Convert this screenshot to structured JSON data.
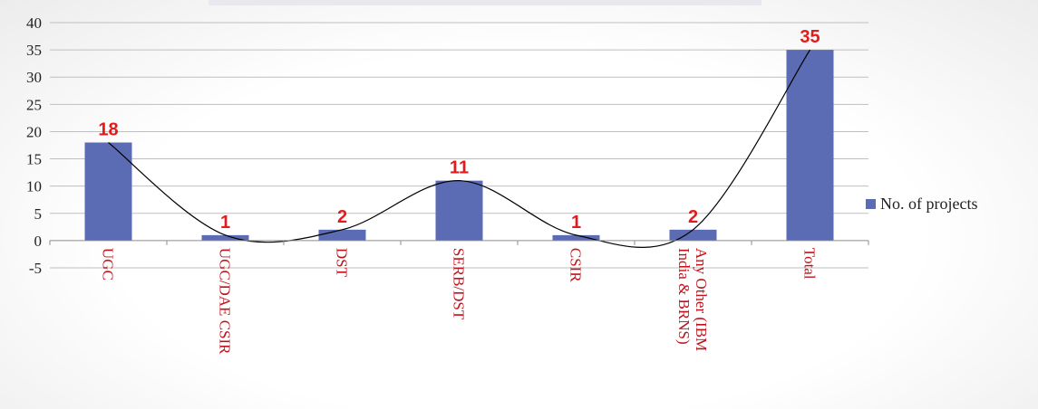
{
  "chart_data": {
    "type": "bar",
    "title": "",
    "xlabel": "",
    "ylabel": "",
    "categories": [
      "UGC",
      "UGC/DAE CSIR",
      "DST",
      "SERB/DST",
      "CSIR",
      "Any Other (IBM India & BRNS)",
      "Total"
    ],
    "category_label_lines": [
      [
        "UGC"
      ],
      [
        "UGC/DAE CSIR"
      ],
      [
        "DST"
      ],
      [
        "SERB/DST"
      ],
      [
        "CSIR"
      ],
      [
        "Any Other (IBM",
        "India & BRNS)"
      ],
      [
        "Total"
      ]
    ],
    "series": [
      {
        "name": "No. of projects",
        "values": [
          18,
          1,
          2,
          11,
          1,
          2,
          35
        ],
        "color": "#5b6cb4"
      }
    ],
    "data_labels": [
      "18",
      "1",
      "2",
      "11",
      "1",
      "2",
      "35"
    ],
    "ylim": [
      -5,
      40
    ],
    "y_ticks": [
      40,
      35,
      30,
      25,
      20,
      15,
      10,
      5,
      0,
      -5
    ],
    "grid": true,
    "legend_position": "right",
    "trendline": "smoothed curve through bar tops",
    "colors": {
      "bar": "#5b6cb4",
      "data_label": "#e31b1b",
      "category_label": "#c0121a",
      "gridline": "#bfbfbf",
      "curve": "#000000"
    }
  }
}
